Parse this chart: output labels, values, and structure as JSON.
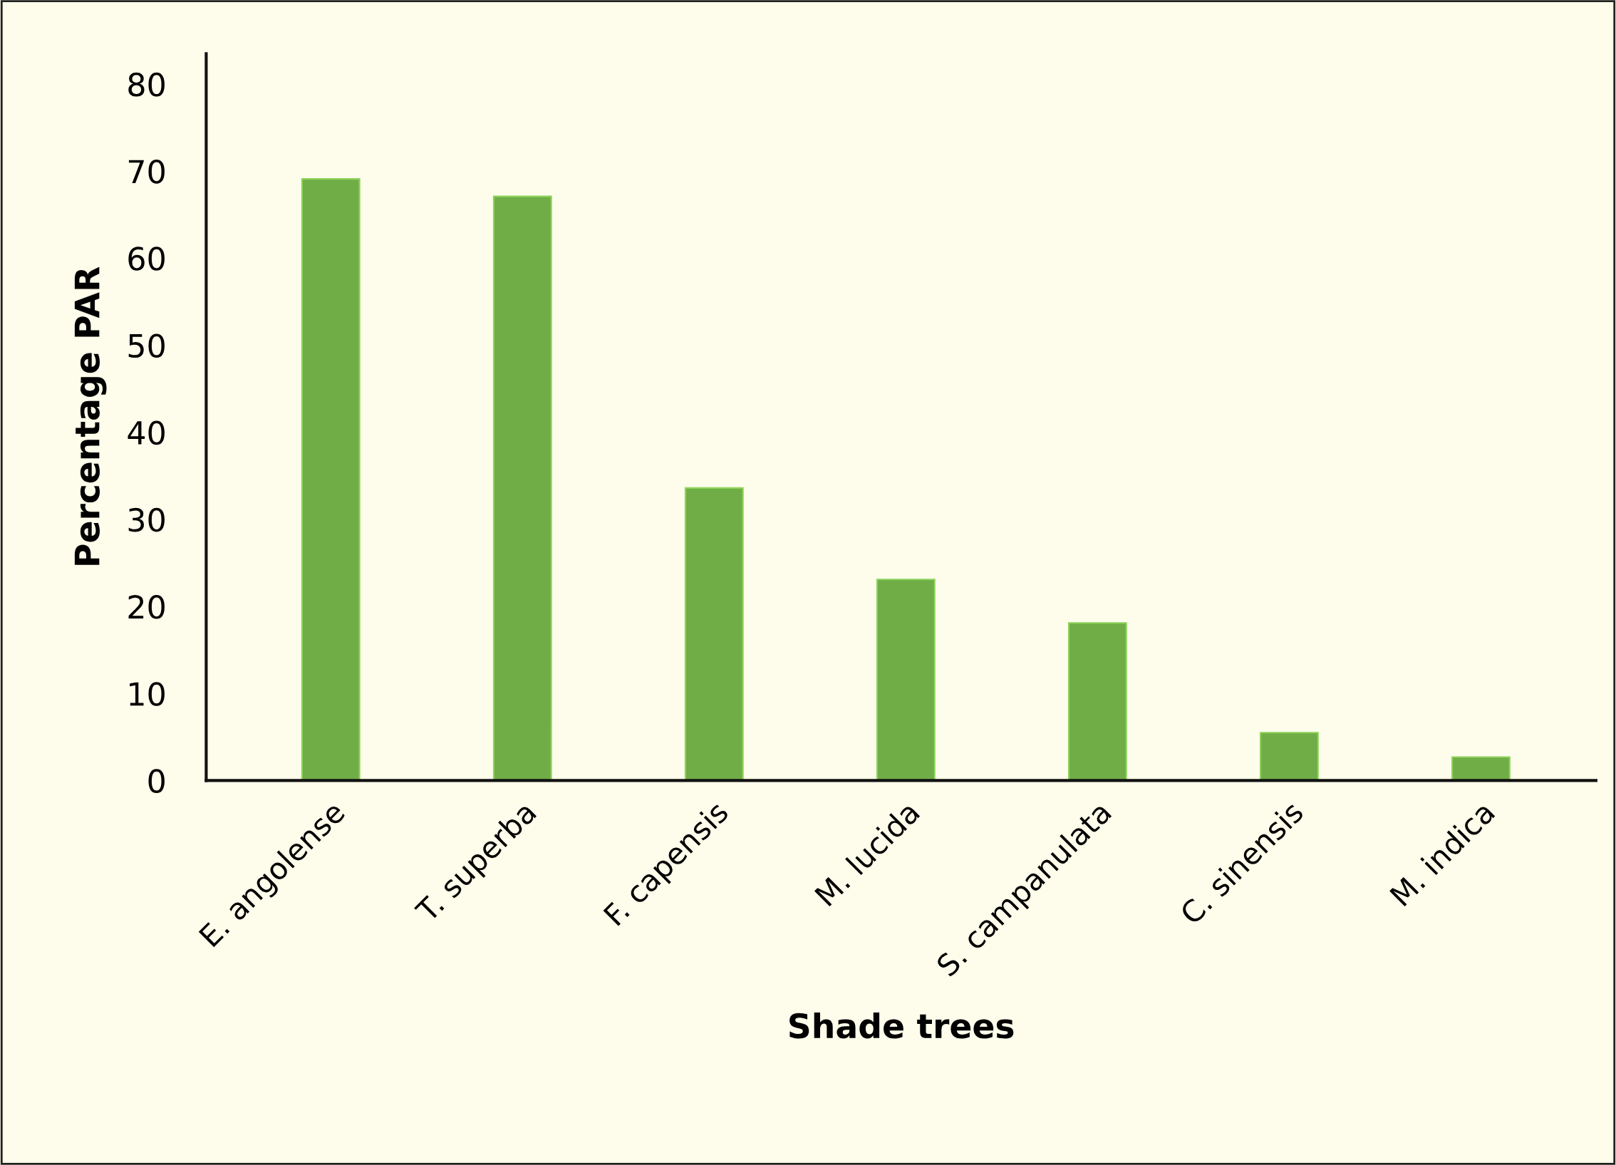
{
  "chart_data": {
    "type": "bar",
    "xlabel": "Shade trees",
    "ylabel": "Percentage PAR",
    "categories": [
      "E. angolense",
      "T. superba",
      "F. capensis",
      "M. lucida",
      "S. campanulata",
      "C. sinensis",
      "M. indica"
    ],
    "values": [
      69.1,
      67.1,
      33.6,
      23.1,
      18.1,
      5.5,
      2.7
    ],
    "color": "#70ad47",
    "ylim": [
      0,
      83.5
    ],
    "yticks": [
      0,
      10,
      20,
      30,
      40,
      50,
      60,
      70,
      80
    ],
    "grid": false,
    "legend": false
  }
}
